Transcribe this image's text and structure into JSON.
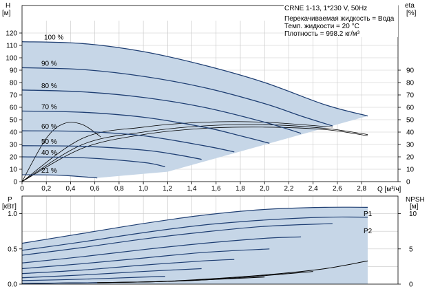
{
  "title": "CRNE 1-13, 1*230 V, 50Hz",
  "info": {
    "line1": "Перекачиваемая жидкость = Вода",
    "line2": "Темп. жидкости = 20 °C",
    "line3": "Плотность = 998.2 кг/м³"
  },
  "colors": {
    "curve": "#1f3f73",
    "area": "#c6d6e7",
    "eta": "#000000",
    "grid": "#c8c8c8"
  },
  "chart_data": [
    {
      "type": "line",
      "name": "head",
      "xlabel": "Q [м³/ч]",
      "ylabel_top": "H",
      "ylabel_unit": "[м]",
      "y2label_top": "eta",
      "y2label_unit": "[%]",
      "xlim": [
        0,
        3.1
      ],
      "ylim": [
        0,
        130
      ],
      "y2lim": [
        0,
        130
      ],
      "xticks": [
        "0",
        "0,2",
        "0,4",
        "0,6",
        "0,8",
        "1,0",
        "1,2",
        "1,4",
        "1,6",
        "1,8",
        "2,0",
        "2,2",
        "2,4",
        "2,6",
        "2,8"
      ],
      "yticks": [
        0,
        10,
        20,
        30,
        40,
        50,
        60,
        70,
        80,
        90,
        100,
        110,
        120
      ],
      "y2ticks": [
        0,
        10,
        20,
        30,
        40,
        50,
        60,
        70,
        80,
        90
      ],
      "speed_labels": [
        "100 %",
        "90 %",
        "80 %",
        "70 %",
        "60 %",
        "50 %",
        "40 %",
        "21 %"
      ],
      "speed_curves": [
        {
          "speed": 100,
          "x": [
            0,
            0.5,
            1.0,
            1.5,
            2.0,
            2.5,
            2.85
          ],
          "y": [
            113,
            111.5,
            105,
            94,
            80,
            62,
            53
          ]
        },
        {
          "speed": 90,
          "x": [
            0,
            0.5,
            1.0,
            1.5,
            2.0,
            2.3,
            2.56
          ],
          "y": [
            92,
            90.5,
            85,
            76,
            63,
            53,
            45
          ]
        },
        {
          "speed": 80,
          "x": [
            0,
            0.5,
            1.0,
            1.5,
            2.0,
            2.3
          ],
          "y": [
            74,
            72.5,
            68,
            60,
            48,
            39
          ]
        },
        {
          "speed": 70,
          "x": [
            0,
            0.5,
            1.0,
            1.5,
            1.8,
            2.04
          ],
          "y": [
            57,
            56,
            52,
            44,
            37,
            31
          ]
        },
        {
          "speed": 60,
          "x": [
            0,
            0.5,
            1.0,
            1.5,
            1.75
          ],
          "y": [
            41,
            40.5,
            37,
            29,
            24
          ]
        },
        {
          "speed": 50,
          "x": [
            0,
            0.5,
            1.0,
            1.26,
            1.48
          ],
          "y": [
            29,
            28.5,
            25.5,
            22,
            18
          ]
        },
        {
          "speed": 40,
          "x": [
            0,
            0.5,
            1.0,
            1.18
          ],
          "y": [
            20,
            19.3,
            15.5,
            12
          ]
        },
        {
          "speed": 21,
          "x": [
            0,
            0.3,
            0.62
          ],
          "y": [
            5.5,
            5.2,
            3
          ]
        }
      ],
      "eta_curves": [
        {
          "x": [
            0,
            0.2,
            0.35,
            0.5,
            0.65
          ],
          "y": [
            0,
            35,
            47,
            46,
            36
          ]
        },
        {
          "x": [
            0,
            0.5,
            1.0,
            1.5,
            2.0,
            2.56
          ],
          "y": [
            0,
            35,
            44,
            48,
            48,
            44
          ]
        },
        {
          "x": [
            0,
            0.5,
            1.0,
            1.5,
            2.0,
            2.5,
            2.85
          ],
          "y": [
            0,
            30,
            40,
            45,
            46,
            43,
            38
          ]
        },
        {
          "x": [
            0,
            0.5,
            1.0,
            1.5,
            2.0,
            2.5,
            2.85
          ],
          "y": [
            0,
            27,
            38,
            43,
            44,
            42,
            37
          ]
        }
      ]
    },
    {
      "type": "line",
      "name": "power_npsh",
      "ylabel_top": "P",
      "ylabel_unit": "[кВт]",
      "y2label_top": "NPSH",
      "y2label_unit": "[м]",
      "xlim": [
        0,
        3.1
      ],
      "ylim": [
        0,
        1.25
      ],
      "y2lim": [
        0,
        12.5
      ],
      "yticks": [
        "0.0",
        "0.5",
        "1.0"
      ],
      "y2ticks": [
        0,
        5,
        10
      ],
      "series_labels": [
        "P1",
        "P2"
      ],
      "power_curves": [
        {
          "name": "P1",
          "x": [
            0,
            0.5,
            1.0,
            1.5,
            2.0,
            2.5,
            2.85
          ],
          "y": [
            0.58,
            0.72,
            0.86,
            0.98,
            1.06,
            1.09,
            1.09
          ]
        },
        {
          "name": "P2",
          "x": [
            0,
            0.5,
            1.0,
            1.5,
            2.0,
            2.5,
            2.85
          ],
          "y": [
            0.48,
            0.6,
            0.73,
            0.84,
            0.91,
            0.95,
            0.95
          ]
        },
        {
          "x": [
            0,
            0.5,
            1.0,
            1.5,
            2.0,
            2.56
          ],
          "y": [
            0.41,
            0.52,
            0.64,
            0.74,
            0.82,
            0.86
          ]
        },
        {
          "x": [
            0,
            0.5,
            1.0,
            1.5,
            2.0,
            2.3
          ],
          "y": [
            0.3,
            0.39,
            0.49,
            0.58,
            0.65,
            0.67
          ]
        },
        {
          "x": [
            0,
            0.5,
            1.0,
            1.5,
            2.04
          ],
          "y": [
            0.22,
            0.29,
            0.37,
            0.45,
            0.5
          ]
        },
        {
          "x": [
            0,
            0.5,
            1.0,
            1.5,
            1.75
          ],
          "y": [
            0.15,
            0.2,
            0.27,
            0.33,
            0.35
          ]
        },
        {
          "x": [
            0,
            0.5,
            1.0,
            1.48
          ],
          "y": [
            0.09,
            0.13,
            0.18,
            0.22
          ]
        },
        {
          "x": [
            0,
            0.5,
            1.0,
            1.18
          ],
          "y": [
            0.05,
            0.07,
            0.1,
            0.11
          ]
        },
        {
          "x": [
            0,
            0.3,
            0.62
          ],
          "y": [
            0.01,
            0.015,
            0.02
          ]
        }
      ],
      "npsh_curves": [
        {
          "x": [
            0,
            1.0,
            1.5,
            2.0,
            2.5,
            2.85
          ],
          "y": [
            0.1,
            0.3,
            0.7,
            1.3,
            2.2,
            3.3
          ]
        },
        {
          "x": [
            0,
            1.0,
            1.5,
            2.0,
            2.4
          ],
          "y": [
            0.1,
            0.3,
            0.6,
            1.2,
            1.8
          ]
        },
        {
          "x": [
            0,
            1.0,
            1.5,
            2.0
          ],
          "y": [
            0.1,
            0.3,
            0.6,
            1.0
          ]
        }
      ]
    }
  ]
}
